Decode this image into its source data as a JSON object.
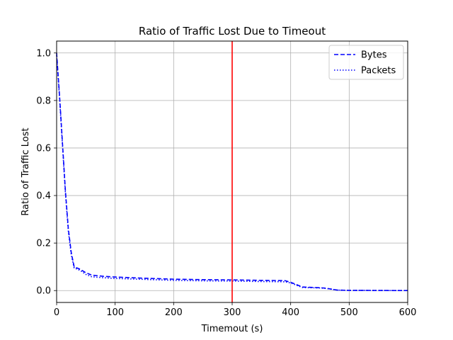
{
  "chart_data": {
    "type": "line",
    "title": "Ratio of Traffic Lost Due to Timeout",
    "xlabel": "Timemout (s)",
    "ylabel": "Ratio of Traffic Lost",
    "xlim": [
      0,
      600
    ],
    "ylim": [
      -0.05,
      1.05
    ],
    "xticks": [
      0,
      100,
      200,
      300,
      400,
      500,
      600
    ],
    "yticks": [
      0.0,
      0.2,
      0.4,
      0.6,
      0.8,
      1.0
    ],
    "xtick_labels": [
      "0",
      "100",
      "200",
      "300",
      "400",
      "500",
      "600"
    ],
    "ytick_labels": [
      "0.0",
      "0.2",
      "0.4",
      "0.6",
      "0.8",
      "1.0"
    ],
    "grid": true,
    "legend_position": "top-right",
    "series": [
      {
        "name": "Bytes",
        "style": "dashed",
        "color": "#0000ff",
        "points": [
          [
            0,
            1.0
          ],
          [
            5,
            0.82
          ],
          [
            10,
            0.62
          ],
          [
            15,
            0.42
          ],
          [
            20,
            0.26
          ],
          [
            25,
            0.16
          ],
          [
            30,
            0.1
          ],
          [
            40,
            0.09
          ],
          [
            50,
            0.075
          ],
          [
            60,
            0.065
          ],
          [
            80,
            0.06
          ],
          [
            100,
            0.057
          ],
          [
            150,
            0.052
          ],
          [
            200,
            0.048
          ],
          [
            250,
            0.046
          ],
          [
            300,
            0.045
          ],
          [
            350,
            0.043
          ],
          [
            390,
            0.042
          ],
          [
            400,
            0.035
          ],
          [
            420,
            0.015
          ],
          [
            450,
            0.012
          ],
          [
            460,
            0.01
          ],
          [
            480,
            0.002
          ],
          [
            500,
            0.001
          ],
          [
            600,
            0.0
          ]
        ]
      },
      {
        "name": "Packets",
        "style": "dotted",
        "color": "#0000ff",
        "points": [
          [
            0,
            0.99
          ],
          [
            5,
            0.81
          ],
          [
            10,
            0.61
          ],
          [
            15,
            0.41
          ],
          [
            20,
            0.25
          ],
          [
            25,
            0.15
          ],
          [
            30,
            0.095
          ],
          [
            40,
            0.085
          ],
          [
            50,
            0.068
          ],
          [
            60,
            0.058
          ],
          [
            80,
            0.054
          ],
          [
            100,
            0.051
          ],
          [
            150,
            0.047
          ],
          [
            200,
            0.043
          ],
          [
            250,
            0.041
          ],
          [
            300,
            0.04
          ],
          [
            350,
            0.038
          ],
          [
            390,
            0.037
          ],
          [
            400,
            0.032
          ],
          [
            420,
            0.013
          ],
          [
            450,
            0.011
          ],
          [
            460,
            0.009
          ],
          [
            480,
            0.002
          ],
          [
            500,
            0.001
          ],
          [
            600,
            0.0
          ]
        ]
      }
    ],
    "vlines": [
      {
        "x": 300,
        "color": "#ff0000"
      }
    ]
  }
}
